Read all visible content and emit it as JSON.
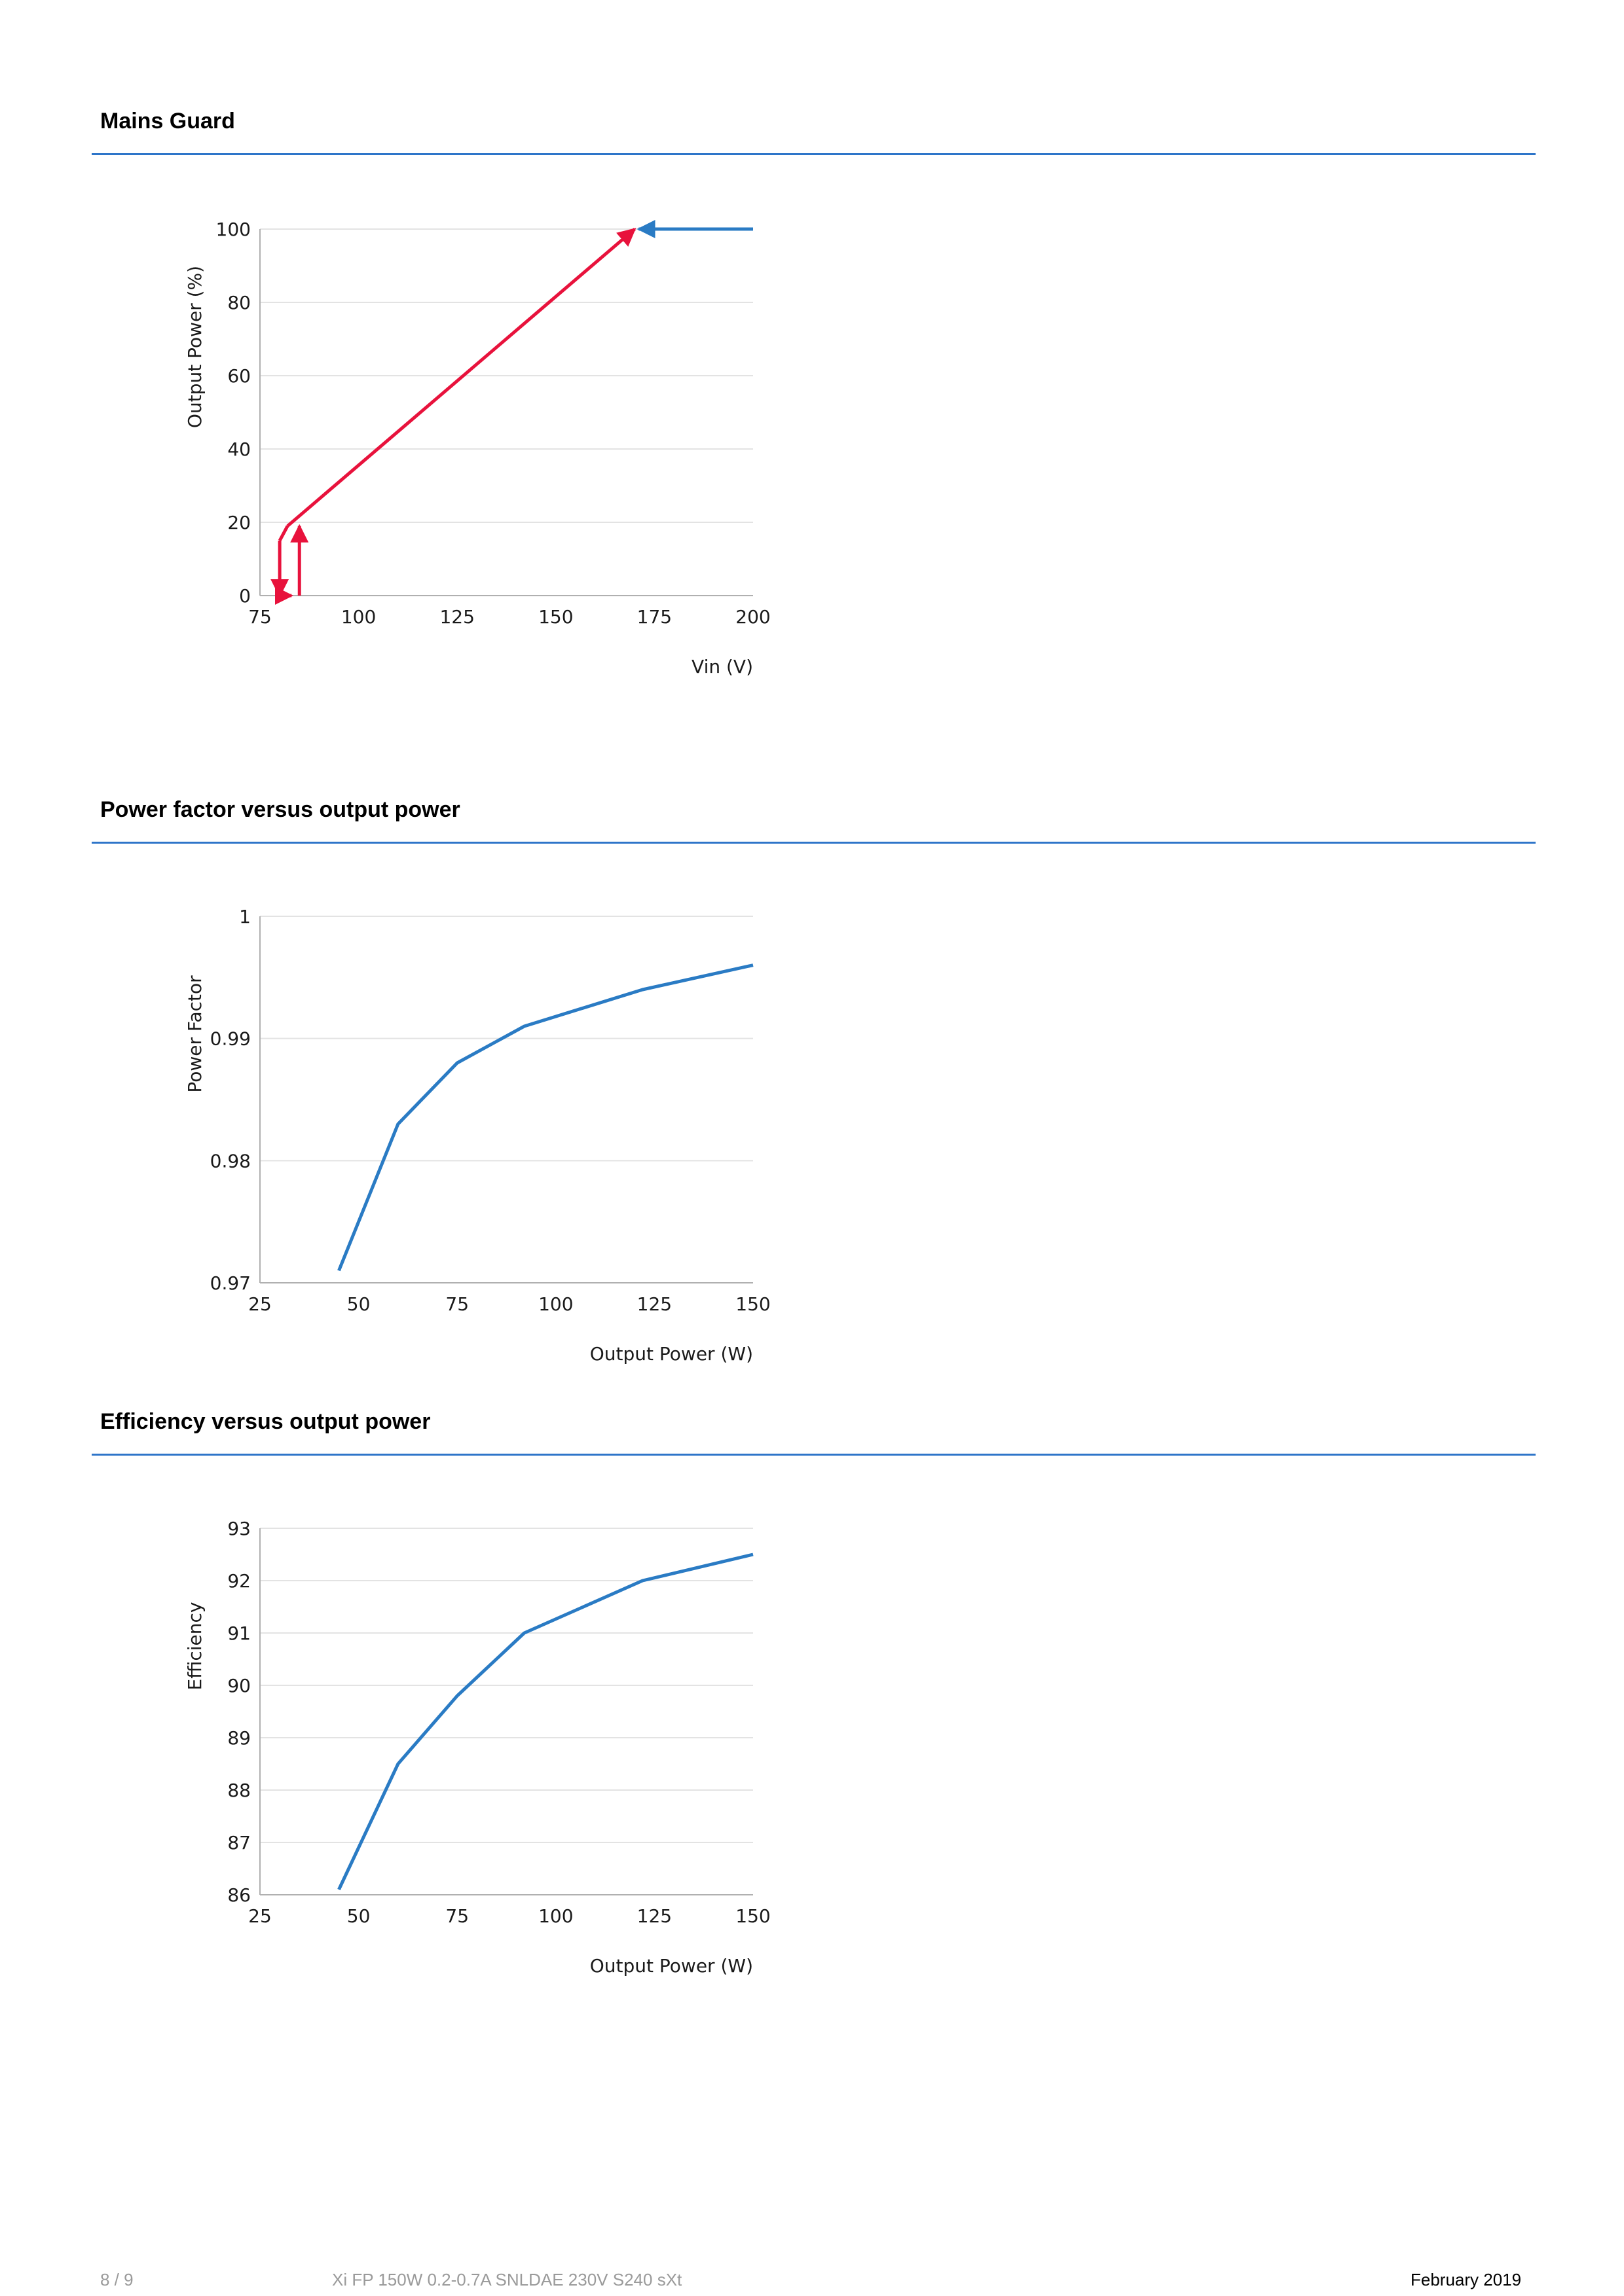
{
  "sections": [
    {
      "title": "Mains Guard"
    },
    {
      "title": "Power factor versus output power"
    },
    {
      "title": "Efficiency versus output power"
    }
  ],
  "footer": {
    "page": "8 / 9",
    "product": "Xi FP 150W 0.2-0.7A SNLDAE 230V S240 sXt",
    "date": "February 2019"
  },
  "colors": {
    "accent": "#2e75c9",
    "line": "#2a7bc4",
    "red": "#e8123c",
    "grid": "#e3e3e3",
    "axis": "#b0b0b0"
  },
  "chart_data": [
    {
      "type": "line",
      "xlabel": "Vin (V)",
      "ylabel": "Output Power (%)",
      "xlim": [
        75,
        200
      ],
      "ylim": [
        0,
        100
      ],
      "xticks": [
        75,
        100,
        125,
        150,
        175,
        200
      ],
      "yticks": [
        0,
        20,
        40,
        60,
        80,
        100
      ],
      "grid": true,
      "series": [
        {
          "color": "#2a7bc4",
          "points": [
            [
              200,
              100
            ],
            [
              171,
              100
            ]
          ],
          "arrow_end": true
        },
        {
          "color": "#e8123c",
          "points": [
            [
              82,
              19
            ],
            [
              170,
              100
            ]
          ],
          "arrow_end": true
        },
        {
          "color": "#e8123c",
          "points": [
            [
              80,
              15
            ],
            [
              80,
              0
            ]
          ],
          "arrow_end": true
        },
        {
          "color": "#e8123c",
          "points": [
            [
              80,
              0
            ],
            [
              83,
              0
            ]
          ],
          "arrow_end": true
        },
        {
          "color": "#e8123c",
          "points": [
            [
              85,
              0
            ],
            [
              85,
              19
            ]
          ],
          "arrow_end": true
        },
        {
          "color": "#e8123c",
          "points": [
            [
              80,
              15
            ],
            [
              82,
              19
            ]
          ],
          "arrow_end": false
        }
      ]
    },
    {
      "type": "line",
      "xlabel": "Output Power (W)",
      "ylabel": "Power Factor",
      "xlim": [
        25,
        150
      ],
      "ylim": [
        0.97,
        1
      ],
      "xticks": [
        25,
        50,
        75,
        100,
        125,
        150
      ],
      "yticks": [
        0.97,
        0.98,
        0.99,
        1
      ],
      "ytick_labels": [
        "0.97",
        "0.98",
        "0.99",
        "1"
      ],
      "grid": true,
      "series": [
        {
          "color": "#2a7bc4",
          "points": [
            [
              45,
              0.971
            ],
            [
              60,
              0.983
            ],
            [
              75,
              0.988
            ],
            [
              92,
              0.991
            ],
            [
              122,
              0.994
            ],
            [
              150,
              0.996
            ]
          ]
        }
      ]
    },
    {
      "type": "line",
      "xlabel": "Output Power (W)",
      "ylabel": "Efficiency",
      "xlim": [
        25,
        150
      ],
      "ylim": [
        86,
        93
      ],
      "xticks": [
        25,
        50,
        75,
        100,
        125,
        150
      ],
      "yticks": [
        86,
        87,
        88,
        89,
        90,
        91,
        92,
        93
      ],
      "grid": true,
      "series": [
        {
          "color": "#2a7bc4",
          "points": [
            [
              45,
              86.1
            ],
            [
              60,
              88.5
            ],
            [
              75,
              89.8
            ],
            [
              92,
              91
            ],
            [
              122,
              92
            ],
            [
              150,
              92.5
            ]
          ]
        }
      ]
    }
  ]
}
